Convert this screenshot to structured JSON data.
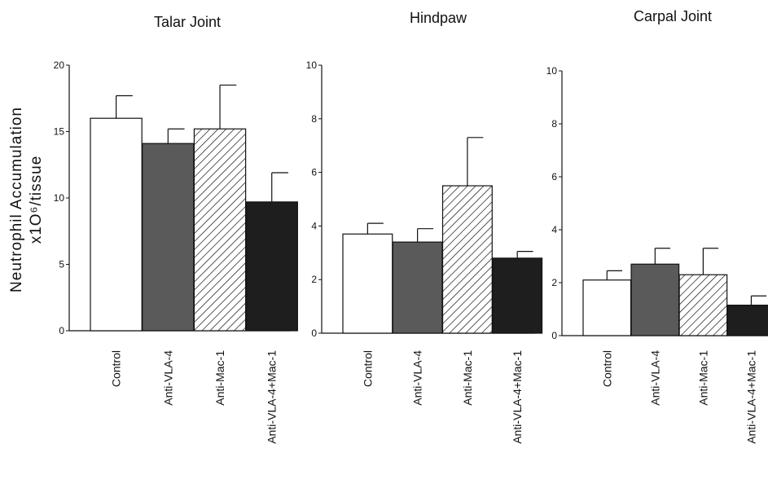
{
  "figure": {
    "ylabel_line1": "Neutrophil Accumulation",
    "ylabel_line2": "x1O⁶/tissue"
  },
  "chart_data": [
    {
      "type": "bar",
      "title": "Talar Joint",
      "categories": [
        "Control",
        "Anti-VLA-4",
        "Anti-Mac-1",
        "Anti-VLA-4+Mac-1"
      ],
      "values": [
        16.0,
        14.1,
        15.2,
        9.7
      ],
      "errors": [
        1.7,
        1.1,
        3.3,
        2.2
      ],
      "ylim": [
        0,
        20
      ],
      "yticks": [
        0,
        5,
        10,
        15,
        20
      ],
      "ylabel": "Neutrophil Accumulation x1O⁶/tissue",
      "fills": [
        "white",
        "dark-gray",
        "hatched",
        "black"
      ]
    },
    {
      "type": "bar",
      "title": "Hindpaw",
      "categories": [
        "Control",
        "Anti-VLA-4",
        "Anti-Mac-1",
        "Anti-VLA-4+Mac-1"
      ],
      "values": [
        3.7,
        3.4,
        5.5,
        2.8
      ],
      "errors": [
        0.4,
        0.5,
        1.8,
        0.25
      ],
      "ylim": [
        0,
        10
      ],
      "yticks": [
        0,
        2,
        4,
        6,
        8,
        10
      ],
      "fills": [
        "white",
        "dark-gray",
        "hatched",
        "black"
      ]
    },
    {
      "type": "bar",
      "title": "Carpal Joint",
      "categories": [
        "Control",
        "Anti-VLA-4",
        "Anti-Mac-1",
        "Anti-VLA-4+Mac-1"
      ],
      "values": [
        2.1,
        2.7,
        2.3,
        1.15
      ],
      "errors": [
        0.35,
        0.6,
        1.0,
        0.35
      ],
      "ylim": [
        0,
        10
      ],
      "yticks": [
        0,
        2,
        4,
        6,
        8,
        10
      ],
      "fills": [
        "white",
        "dark-gray",
        "hatched",
        "black"
      ]
    }
  ],
  "colors": {
    "white_bar": "#ffffff",
    "gray_bar": "#5a5a5a",
    "black_bar": "#1e1e1e",
    "hatch": "#111111",
    "axis": "#111111"
  }
}
